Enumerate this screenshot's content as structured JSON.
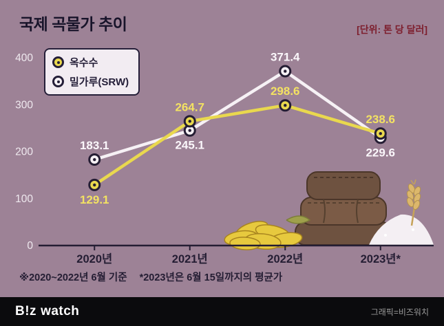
{
  "header": {
    "title": "국제 곡물가 추이",
    "unit_label": "[단위: 톤 당 달러]"
  },
  "colors": {
    "background": "#9d8296",
    "title_text": "#18142a",
    "unit_text": "#7d1e2d",
    "axis": "#241d33",
    "y_tick_text": "#efe9ef",
    "x_tick_text": "#241d33",
    "corn": "#e9d84e",
    "wheat": "#f6f1f5",
    "footer_bg": "#0b0b0d"
  },
  "chart_data": {
    "type": "line",
    "title": "국제 곡물가 추이",
    "unit": "톤 당 달러",
    "categories": [
      "2020년",
      "2021년",
      "2022년",
      "2023년*"
    ],
    "series": [
      {
        "name": "옥수수",
        "color": "#e9d84e",
        "label_color": "#f3e262",
        "values": [
          129.1,
          264.7,
          298.6,
          238.6
        ],
        "label_pos": [
          "below",
          "above",
          "above",
          "above"
        ]
      },
      {
        "name": "밀가루(SRW)",
        "color": "#f6f1f5",
        "label_color": "#fbf7fb",
        "values": [
          183.1,
          245.1,
          371.4,
          229.6
        ],
        "label_pos": [
          "above",
          "below",
          "above",
          "below"
        ]
      }
    ],
    "ylim": [
      0,
      400
    ],
    "yticks": [
      0,
      100,
      200,
      300,
      400
    ],
    "grid": false,
    "legend_position": "top-left"
  },
  "footnote": {
    "base": "※2020~2022년 6월 기준",
    "avg": "*2023년은 6월 15일까지의 평균가"
  },
  "footer": {
    "logo_b": "B!z",
    "logo_watch": "watch",
    "credit": "그래픽=비즈워치"
  }
}
